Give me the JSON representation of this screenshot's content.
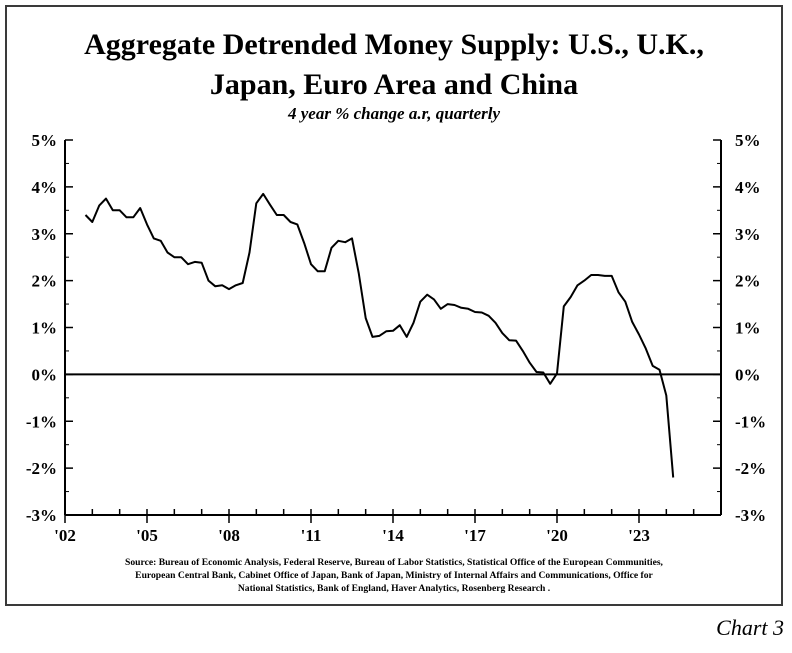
{
  "title_line1": "Aggregate Detrended Money Supply: U.S., U.K.,",
  "title_line2": "Japan, Euro Area and China",
  "subtitle": "4 year % change a.r, quarterly",
  "source_lines": [
    "Source: Bureau of Economic Analysis, Federal Reserve, Bureau of Labor Statistics, Statistical Office of the European Communities,",
    "European Central Bank, Cabinet Office of Japan, Bank of Japan, Ministry of Internal Affairs and Communications, Office for",
    "National Statistics, Bank of England, Haver Analytics, Rosenberg Research ."
  ],
  "footer_label": "Chart 3",
  "colors": {
    "line": "#000000",
    "frame": "#3a3a3a",
    "background": "#ffffff"
  },
  "chart_data": {
    "type": "line",
    "title": "Aggregate Detrended Money Supply: U.S., U.K., Japan, Euro Area and China",
    "subtitle": "4 year % change a.r, quarterly",
    "xlabel": "",
    "ylabel": "",
    "xlim": [
      2002.0,
      2026.0
    ],
    "ylim": [
      -3,
      5
    ],
    "grid": false,
    "x_ticks": [
      {
        "value": 2002,
        "label": "'02"
      },
      {
        "value": 2005,
        "label": "'05"
      },
      {
        "value": 2008,
        "label": "'08"
      },
      {
        "value": 2011,
        "label": "'11"
      },
      {
        "value": 2014,
        "label": "'14"
      },
      {
        "value": 2017,
        "label": "'17"
      },
      {
        "value": 2020,
        "label": "'20"
      },
      {
        "value": 2023,
        "label": "'23"
      }
    ],
    "y_ticks": [
      {
        "value": 5,
        "label": "5%"
      },
      {
        "value": 4,
        "label": "4%"
      },
      {
        "value": 3,
        "label": "3%"
      },
      {
        "value": 2,
        "label": "2%"
      },
      {
        "value": 1,
        "label": "1%"
      },
      {
        "value": 0,
        "label": "0%"
      },
      {
        "value": -1,
        "label": "-1%"
      },
      {
        "value": -2,
        "label": "-2%"
      },
      {
        "value": -3,
        "label": "-3%"
      }
    ],
    "reference_line": 0,
    "x": [
      2002.75,
      2003.0,
      2003.25,
      2003.5,
      2003.75,
      2004.0,
      2004.25,
      2004.5,
      2004.75,
      2005.0,
      2005.25,
      2005.5,
      2005.75,
      2006.0,
      2006.25,
      2006.5,
      2006.75,
      2007.0,
      2007.25,
      2007.5,
      2007.75,
      2008.0,
      2008.25,
      2008.5,
      2008.75,
      2009.0,
      2009.25,
      2009.5,
      2009.75,
      2010.0,
      2010.25,
      2010.5,
      2010.75,
      2011.0,
      2011.25,
      2011.5,
      2011.75,
      2012.0,
      2012.25,
      2012.5,
      2012.75,
      2013.0,
      2013.25,
      2013.5,
      2013.75,
      2014.0,
      2014.25,
      2014.5,
      2014.75,
      2015.0,
      2015.25,
      2015.5,
      2015.75,
      2016.0,
      2016.25,
      2016.5,
      2016.75,
      2017.0,
      2017.25,
      2017.5,
      2017.75,
      2018.0,
      2018.25,
      2018.5,
      2018.75,
      2019.0,
      2019.25,
      2019.5,
      2019.75,
      2020.0,
      2020.25,
      2020.5,
      2020.75,
      2021.0,
      2021.25,
      2021.5,
      2021.75,
      2022.0,
      2022.25,
      2022.5,
      2022.75,
      2023.0,
      2023.25,
      2023.5,
      2023.75,
      2024.0,
      2024.25
    ],
    "series": [
      {
        "values": [
          3.4,
          3.25,
          3.6,
          3.75,
          3.5,
          3.5,
          3.35,
          3.35,
          3.55,
          3.2,
          2.9,
          2.85,
          2.6,
          2.5,
          2.5,
          2.35,
          2.4,
          2.38,
          2.0,
          1.88,
          1.9,
          1.82,
          1.9,
          1.95,
          2.6,
          3.65,
          3.85,
          3.62,
          3.4,
          3.4,
          3.25,
          3.2,
          2.8,
          2.35,
          2.2,
          2.2,
          2.7,
          2.85,
          2.82,
          2.9,
          2.15,
          1.2,
          0.8,
          0.82,
          0.92,
          0.93,
          1.05,
          0.8,
          1.1,
          1.55,
          1.7,
          1.6,
          1.4,
          1.5,
          1.48,
          1.42,
          1.4,
          1.33,
          1.32,
          1.25,
          1.1,
          0.88,
          0.73,
          0.72,
          0.5,
          0.25,
          0.05,
          0.04,
          -0.2,
          0.02,
          1.45,
          1.65,
          1.9,
          2.0,
          2.12,
          2.12,
          2.1,
          2.1,
          1.75,
          1.55,
          1.12,
          0.85,
          0.55,
          0.18,
          0.1,
          -0.45,
          -2.2
        ]
      }
    ]
  }
}
